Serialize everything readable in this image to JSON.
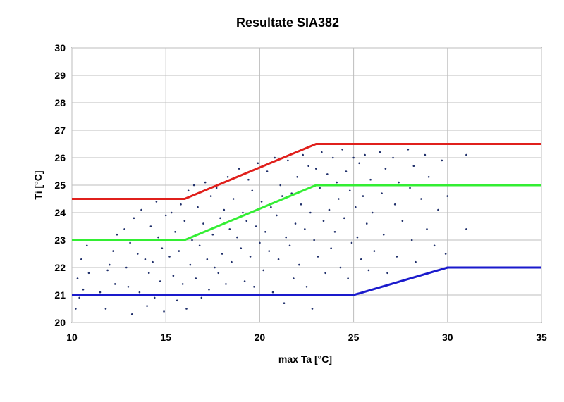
{
  "chart_data": {
    "type": "scatter",
    "title": "Resultate SIA382",
    "xlabel": "max Ta [°C]",
    "ylabel": "Ti [°C]",
    "xlim": [
      10,
      35
    ],
    "ylim": [
      20,
      30
    ],
    "x_ticks": [
      "10",
      "15",
      "20",
      "25",
      "30",
      "35"
    ],
    "y_ticks": [
      "20",
      "21",
      "22",
      "23",
      "24",
      "25",
      "26",
      "27",
      "28",
      "29",
      "30"
    ],
    "grid": true,
    "legend": "none",
    "series": [
      {
        "kind": "line",
        "color": "#e0201c",
        "x": [
          10,
          16,
          23,
          35
        ],
        "y": [
          24.5,
          24.5,
          26.5,
          26.5
        ]
      },
      {
        "kind": "line",
        "color": "#33ee33",
        "x": [
          10,
          16,
          23,
          35
        ],
        "y": [
          23.0,
          23.0,
          25.0,
          25.0
        ]
      },
      {
        "kind": "line",
        "color": "#1a1acc",
        "x": [
          10,
          25,
          30,
          35
        ],
        "y": [
          21.0,
          21.0,
          22.0,
          22.0
        ]
      },
      {
        "kind": "scatter",
        "color": "#1f2f6a",
        "points": [
          [
            10.2,
            20.5
          ],
          [
            10.3,
            21.6
          ],
          [
            10.5,
            22.3
          ],
          [
            10.6,
            21.2
          ],
          [
            10.8,
            22.8
          ],
          [
            10.9,
            21.8
          ],
          [
            10.4,
            20.9
          ],
          [
            11.5,
            21.1
          ],
          [
            11.8,
            20.5
          ],
          [
            11.9,
            21.9
          ],
          [
            12.2,
            22.6
          ],
          [
            12.3,
            21.4
          ],
          [
            12.4,
            23.2
          ],
          [
            12.0,
            22.1
          ],
          [
            12.8,
            23.4
          ],
          [
            12.9,
            22.0
          ],
          [
            13.0,
            21.3
          ],
          [
            13.1,
            22.9
          ],
          [
            13.3,
            23.8
          ],
          [
            13.2,
            20.3
          ],
          [
            13.5,
            22.5
          ],
          [
            13.6,
            21.1
          ],
          [
            13.7,
            24.1
          ],
          [
            13.8,
            23.0
          ],
          [
            13.9,
            22.3
          ],
          [
            14.0,
            20.6
          ],
          [
            14.1,
            21.8
          ],
          [
            14.2,
            23.5
          ],
          [
            14.3,
            22.2
          ],
          [
            14.4,
            20.9
          ],
          [
            14.5,
            24.4
          ],
          [
            14.6,
            23.1
          ],
          [
            14.7,
            21.5
          ],
          [
            14.8,
            22.7
          ],
          [
            14.9,
            20.4
          ],
          [
            15.0,
            23.9
          ],
          [
            15.1,
            21.0
          ],
          [
            15.2,
            22.4
          ],
          [
            15.3,
            24.0
          ],
          [
            15.4,
            21.7
          ],
          [
            15.5,
            23.3
          ],
          [
            15.6,
            20.8
          ],
          [
            15.7,
            22.6
          ],
          [
            15.8,
            24.3
          ],
          [
            15.9,
            21.4
          ],
          [
            16.0,
            23.7
          ],
          [
            16.1,
            20.5
          ],
          [
            16.2,
            24.8
          ],
          [
            16.3,
            22.1
          ],
          [
            16.4,
            23.0
          ],
          [
            16.5,
            25.0
          ],
          [
            16.6,
            21.6
          ],
          [
            16.7,
            24.2
          ],
          [
            16.8,
            22.8
          ],
          [
            16.9,
            20.9
          ],
          [
            17.0,
            23.6
          ],
          [
            17.1,
            25.1
          ],
          [
            17.2,
            22.3
          ],
          [
            17.3,
            21.2
          ],
          [
            17.4,
            24.6
          ],
          [
            17.5,
            23.2
          ],
          [
            17.6,
            22.0
          ],
          [
            17.7,
            24.9
          ],
          [
            17.8,
            21.8
          ],
          [
            17.9,
            23.8
          ],
          [
            18.0,
            22.5
          ],
          [
            18.1,
            24.1
          ],
          [
            18.2,
            21.4
          ],
          [
            18.3,
            25.3
          ],
          [
            18.4,
            23.4
          ],
          [
            18.5,
            22.2
          ],
          [
            18.6,
            24.5
          ],
          [
            18.7,
            21.0
          ],
          [
            18.8,
            23.1
          ],
          [
            18.9,
            25.6
          ],
          [
            19.0,
            22.7
          ],
          [
            19.1,
            24.0
          ],
          [
            19.2,
            21.5
          ],
          [
            19.3,
            23.7
          ],
          [
            19.4,
            25.2
          ],
          [
            19.5,
            22.4
          ],
          [
            19.6,
            24.8
          ],
          [
            19.7,
            21.3
          ],
          [
            19.8,
            23.5
          ],
          [
            19.9,
            25.8
          ],
          [
            20.0,
            22.9
          ],
          [
            20.1,
            24.4
          ],
          [
            20.2,
            21.9
          ],
          [
            20.3,
            23.3
          ],
          [
            20.4,
            25.5
          ],
          [
            20.5,
            22.6
          ],
          [
            20.6,
            24.2
          ],
          [
            20.7,
            21.1
          ],
          [
            20.8,
            26.0
          ],
          [
            20.9,
            23.9
          ],
          [
            21.0,
            22.3
          ],
          [
            21.1,
            25.0
          ],
          [
            21.2,
            24.6
          ],
          [
            21.3,
            20.7
          ],
          [
            21.4,
            23.1
          ],
          [
            21.5,
            25.9
          ],
          [
            21.6,
            22.8
          ],
          [
            21.7,
            24.7
          ],
          [
            21.8,
            21.6
          ],
          [
            21.9,
            23.6
          ],
          [
            22.0,
            25.3
          ],
          [
            22.1,
            22.1
          ],
          [
            22.2,
            24.3
          ],
          [
            22.3,
            26.1
          ],
          [
            22.4,
            23.4
          ],
          [
            22.5,
            21.3
          ],
          [
            22.6,
            25.7
          ],
          [
            22.7,
            24.0
          ],
          [
            22.8,
            20.5
          ],
          [
            22.9,
            23.0
          ],
          [
            23.0,
            25.6
          ],
          [
            23.1,
            22.4
          ],
          [
            23.2,
            24.9
          ],
          [
            23.3,
            26.2
          ],
          [
            23.4,
            23.7
          ],
          [
            23.5,
            21.8
          ],
          [
            23.6,
            25.4
          ],
          [
            23.7,
            24.1
          ],
          [
            23.8,
            22.7
          ],
          [
            23.9,
            26.0
          ],
          [
            24.0,
            23.3
          ],
          [
            24.1,
            25.1
          ],
          [
            24.2,
            24.5
          ],
          [
            24.3,
            22.0
          ],
          [
            24.4,
            26.3
          ],
          [
            24.5,
            23.8
          ],
          [
            24.6,
            25.5
          ],
          [
            24.7,
            21.6
          ],
          [
            24.8,
            24.8
          ],
          [
            24.9,
            22.9
          ],
          [
            25.0,
            26.0
          ],
          [
            25.1,
            24.2
          ],
          [
            25.2,
            23.1
          ],
          [
            25.3,
            25.8
          ],
          [
            25.4,
            22.3
          ],
          [
            25.5,
            24.6
          ],
          [
            25.6,
            26.1
          ],
          [
            25.7,
            23.6
          ],
          [
            25.8,
            21.9
          ],
          [
            25.9,
            25.2
          ],
          [
            26.0,
            24.0
          ],
          [
            26.1,
            22.6
          ],
          [
            26.4,
            26.2
          ],
          [
            26.5,
            24.7
          ],
          [
            26.6,
            23.2
          ],
          [
            26.7,
            25.6
          ],
          [
            26.8,
            21.8
          ],
          [
            27.1,
            26.0
          ],
          [
            27.2,
            24.3
          ],
          [
            27.3,
            22.4
          ],
          [
            27.4,
            25.1
          ],
          [
            27.6,
            23.7
          ],
          [
            27.9,
            26.3
          ],
          [
            28.0,
            24.9
          ],
          [
            28.1,
            23.0
          ],
          [
            28.2,
            25.7
          ],
          [
            28.3,
            22.2
          ],
          [
            28.6,
            24.5
          ],
          [
            28.8,
            26.1
          ],
          [
            28.9,
            23.4
          ],
          [
            29.0,
            25.3
          ],
          [
            29.3,
            22.8
          ],
          [
            29.5,
            24.1
          ],
          [
            29.7,
            25.9
          ],
          [
            29.9,
            22.5
          ],
          [
            30.0,
            24.6
          ],
          [
            31.0,
            26.5
          ],
          [
            31.0,
            25.0
          ],
          [
            31.0,
            23.4
          ],
          [
            31.0,
            26.1
          ]
        ]
      }
    ]
  }
}
